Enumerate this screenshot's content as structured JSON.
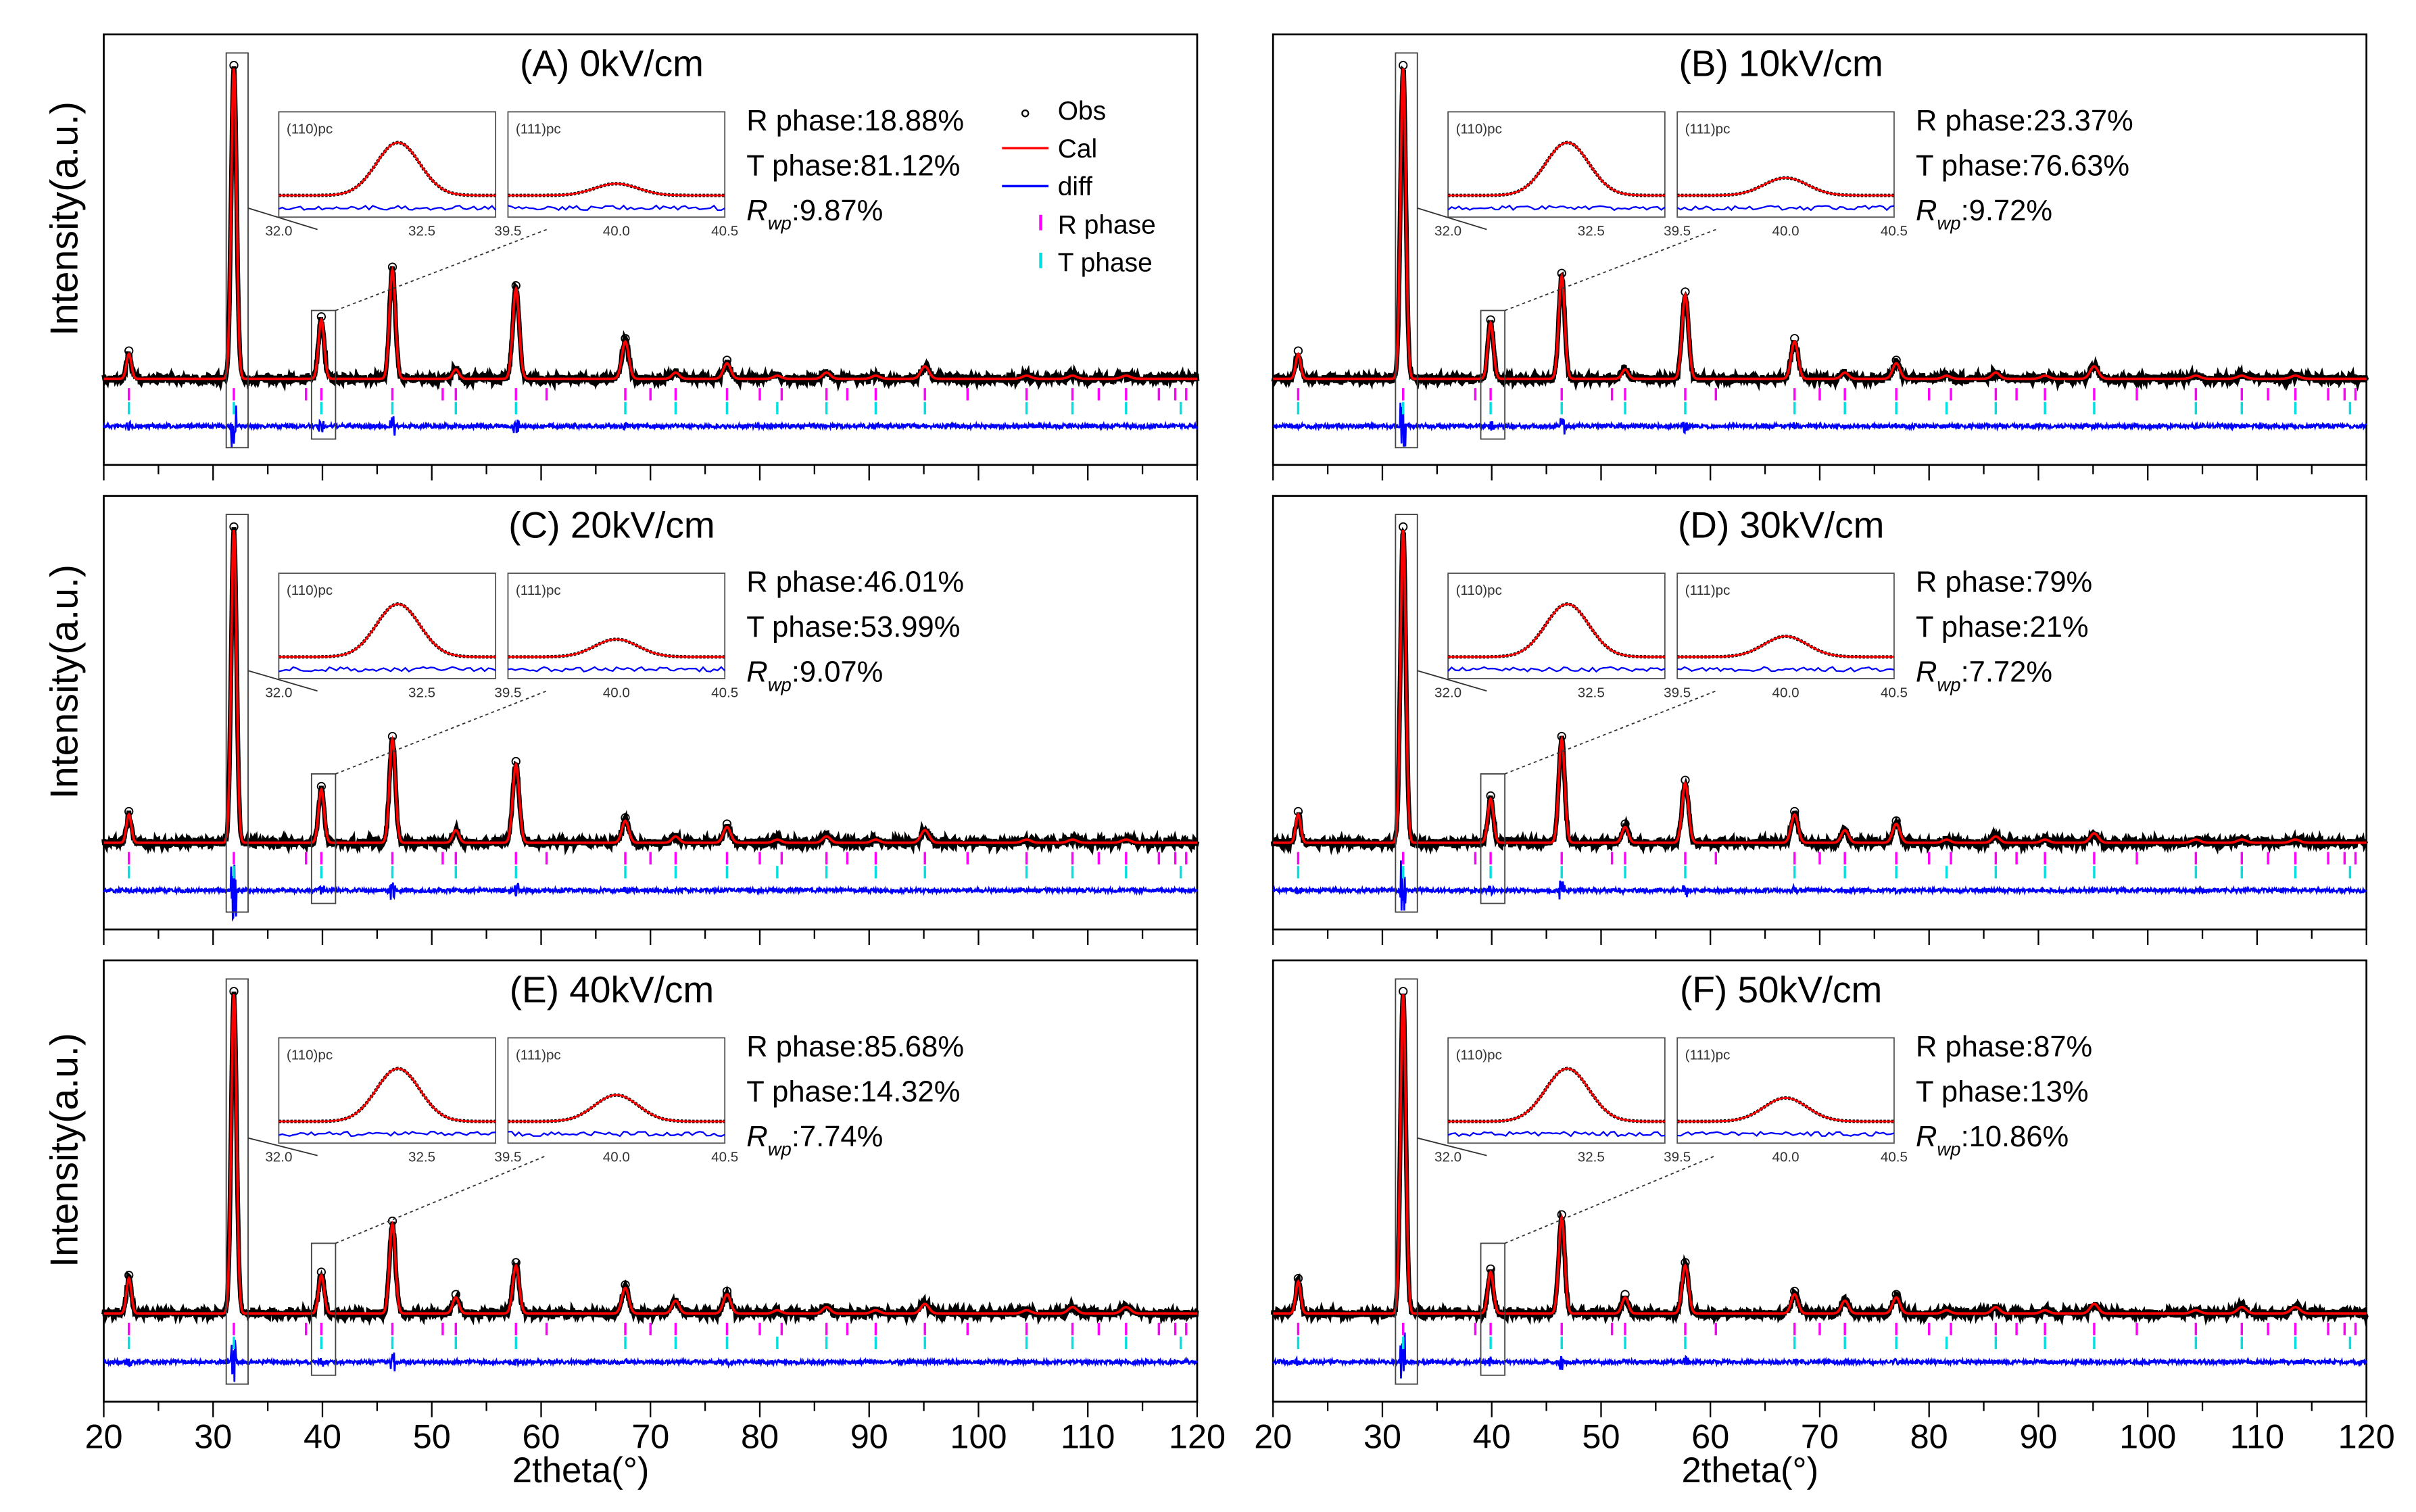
{
  "chart_data": {
    "type": "line",
    "xlabel": "2theta(°)",
    "ylabel": "Intensity(a.u.)",
    "xlim": [
      20,
      120
    ],
    "xticks": [
      "20",
      "30",
      "40",
      "50",
      "60",
      "70",
      "80",
      "90",
      "100",
      "110",
      "120"
    ],
    "legend": {
      "placement": "top-right of panel A",
      "entries": [
        "Obs",
        "Cal",
        "diff",
        "R phase",
        "T phase"
      ]
    },
    "colors": {
      "obs": "#000000",
      "cal": "#ff0000",
      "diff": "#0000ff",
      "r_phase": "#ff00ff",
      "t_phase": "#00e0e0"
    },
    "peaks_2theta": [
      22.3,
      31.9,
      39.9,
      46.4,
      52.2,
      57.7,
      67.7,
      72.3,
      77.0,
      81.6,
      86.1,
      90.6,
      95.1,
      104.4,
      108.6,
      113.5
    ],
    "r_phase_reflections": [
      22.3,
      31.9,
      38.5,
      39.9,
      46.4,
      51.0,
      52.2,
      57.7,
      60.5,
      67.7,
      70.0,
      72.3,
      77.0,
      80.0,
      82.0,
      86.1,
      88.0,
      90.6,
      95.1,
      99.0,
      104.4,
      108.6,
      111.0,
      113.5,
      116.5,
      118.0,
      119.0
    ],
    "t_phase_reflections": [
      22.3,
      31.9,
      39.9,
      46.4,
      52.2,
      57.7,
      67.7,
      72.3,
      77.0,
      81.6,
      86.1,
      90.6,
      95.1,
      104.4,
      108.6,
      113.5,
      118.5
    ],
    "inset_110": {
      "label": "(110)pc",
      "xlim": [
        32.0,
        32.5
      ],
      "xticks": [
        "32.0",
        "32.5"
      ]
    },
    "inset_111": {
      "label": "(111)pc",
      "xlim": [
        39.5,
        40.5
      ],
      "xticks": [
        "39.5",
        "40.0",
        "40.5"
      ]
    },
    "panels": [
      {
        "id": "A",
        "title": "(A) 0kV/cm",
        "r_phase": "R phase:18.88%",
        "t_phase": "T phase:81.12%",
        "rwp_symbol": "R",
        "rwp_sub": "wp",
        "rwp_value": ":9.87%",
        "relative_intensities": [
          8,
          100,
          19,
          35,
          3,
          29,
          12,
          2,
          5,
          1,
          2,
          1,
          4,
          1,
          1,
          1
        ],
        "inset_111_height": 0.2
      },
      {
        "id": "B",
        "title": "(B) 10kV/cm",
        "r_phase": "R phase:23.37%",
        "t_phase": "T phase:76.63%",
        "rwp_symbol": "R",
        "rwp_sub": "wp",
        "rwp_value": ":9.72%",
        "relative_intensities": [
          8,
          100,
          18,
          33,
          3,
          27,
          12,
          2,
          5,
          1,
          2,
          1,
          4,
          1,
          1,
          1
        ],
        "inset_111_height": 0.3
      },
      {
        "id": "C",
        "title": "(C) 20kV/cm",
        "r_phase": "R phase:46.01%",
        "t_phase": "T phase:53.99%",
        "rwp_symbol": "R",
        "rwp_sub": "wp",
        "rwp_value": ":9.07%",
        "relative_intensities": [
          9,
          100,
          17,
          33,
          4,
          25,
          7,
          2,
          5,
          1,
          2,
          1,
          4,
          1,
          1,
          1
        ],
        "inset_111_height": 0.3
      },
      {
        "id": "D",
        "title": "(D) 30kV/cm",
        "r_phase": "R phase:79%",
        "t_phase": "T phase:21%",
        "rwp_symbol": "R",
        "rwp_sub": "wp",
        "rwp_value": ":7.72%",
        "relative_intensities": [
          9,
          100,
          14,
          33,
          5,
          19,
          9,
          4,
          6,
          1,
          2,
          1,
          3,
          1,
          1,
          1
        ],
        "inset_111_height": 0.35
      },
      {
        "id": "E",
        "title": "(E) 40kV/cm",
        "r_phase": "R phase:85.68%",
        "t_phase": "T phase:14.32%",
        "rwp_symbol": "R",
        "rwp_sub": "wp",
        "rwp_value": ":7.74%",
        "relative_intensities": [
          11,
          100,
          12,
          28,
          5,
          15,
          8,
          4,
          6,
          1,
          2,
          1,
          3,
          1,
          2,
          2
        ],
        "inset_111_height": 0.45
      },
      {
        "id": "F",
        "title": "(F) 50kV/cm",
        "r_phase": "R phase:87%",
        "t_phase": "T phase:13%",
        "rwp_symbol": "R",
        "rwp_sub": "wp",
        "rwp_value": ":10.86%",
        "relative_intensities": [
          10,
          100,
          13,
          30,
          5,
          15,
          6,
          4,
          5,
          1,
          2,
          1,
          3,
          1,
          2,
          2
        ],
        "inset_111_height": 0.4
      }
    ]
  }
}
